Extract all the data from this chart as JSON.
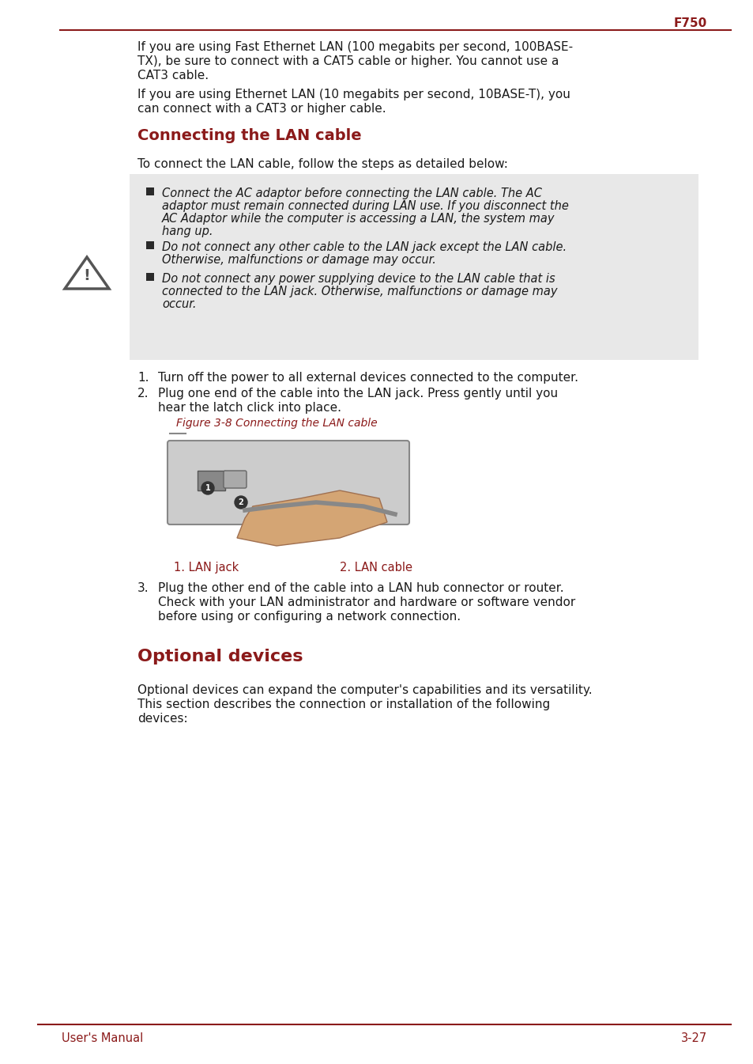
{
  "page_color": "#ffffff",
  "text_color": "#1a1a1a",
  "red_color": "#8B1A1A",
  "gray_bg": "#e8e8e8",
  "header_text": "F750",
  "footer_left": "User's Manual",
  "footer_right": "3-27",
  "para1_line1": "If you are using Fast Ethernet LAN (100 megabits per second, 100BASE-",
  "para1_line2": "TX), be sure to connect with a CAT5 cable or higher. You cannot use a",
  "para1_line3": "CAT3 cable.",
  "para2_line1": "If you are using Ethernet LAN (10 megabits per second, 10BASE-T), you",
  "para2_line2": "can connect with a CAT3 or higher cable.",
  "section1_title": "Connecting the LAN cable",
  "intro_text": "To connect the LAN cable, follow the steps as detailed below:",
  "warning1_line1": "Connect the AC adaptor before connecting the LAN cable. The AC",
  "warning1_line2": "adaptor must remain connected during LAN use. If you disconnect the",
  "warning1_line3": "AC Adaptor while the computer is accessing a LAN, the system may",
  "warning1_line4": "hang up.",
  "warning2_line1": "Do not connect any other cable to the LAN jack except the LAN cable.",
  "warning2_line2": "Otherwise, malfunctions or damage may occur.",
  "warning3_line1": "Do not connect any power supplying device to the LAN cable that is",
  "warning3_line2": "connected to the LAN jack. Otherwise, malfunctions or damage may",
  "warning3_line3": "occur.",
  "step1": "Turn off the power to all external devices connected to the computer.",
  "step2_line1": "Plug one end of the cable into the LAN jack. Press gently until you",
  "step2_line2": "hear the latch click into place.",
  "figure_caption": "Figure 3-8 Connecting the LAN cable",
  "label1": "1. LAN jack",
  "label2": "2. LAN cable",
  "step3_line1": "Plug the other end of the cable into a LAN hub connector or router.",
  "step3_line2": "Check with your LAN administrator and hardware or software vendor",
  "step3_line3": "before using or configuring a network connection.",
  "section2_title": "Optional devices",
  "optional_line1": "Optional devices can expand the computer's capabilities and its versatility.",
  "optional_line2": "This section describes the connection or installation of the following",
  "optional_line3": "devices:"
}
